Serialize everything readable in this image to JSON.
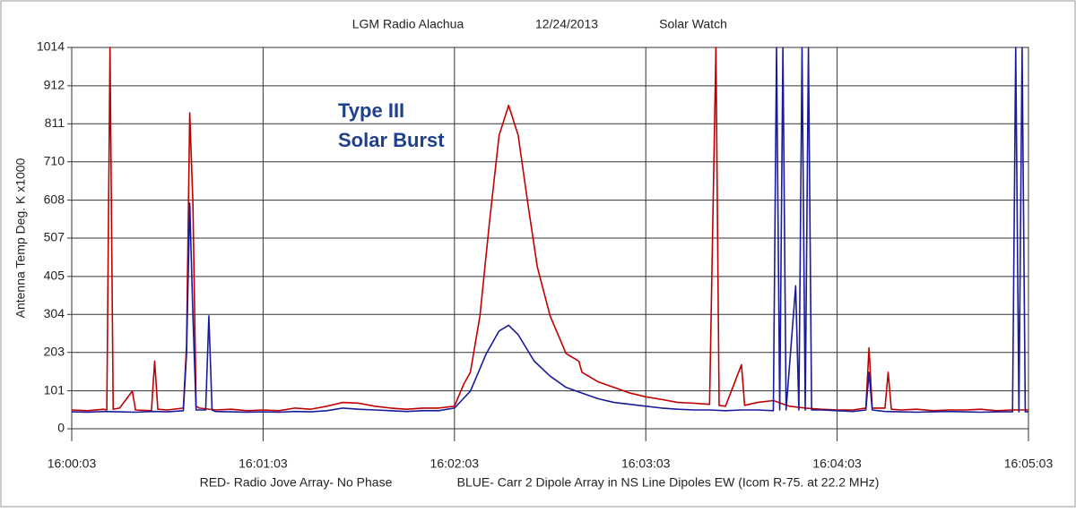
{
  "chart_data": {
    "type": "line",
    "title_parts": [
      "LGM Radio Alachua",
      "12/24/2013",
      "Solar Watch"
    ],
    "y_label": "Antenna Temp Deg. K x1000",
    "annotation": [
      "Type III",
      "Solar Burst"
    ],
    "ylim": [
      0,
      1014
    ],
    "yticks": [
      0,
      101,
      203,
      304,
      405,
      507,
      608,
      710,
      811,
      912,
      1014
    ],
    "xlim": [
      "16:00:03",
      "16:05:03"
    ],
    "xticks": [
      "16:00:03",
      "16:01:03",
      "16:02:03",
      "16:03:03",
      "16:04:03",
      "16:05:03"
    ],
    "grid": true,
    "series": [
      {
        "name": "RED- Radio Jove Array- No Phase",
        "color": "#c00000",
        "x": [
          "16:00:03",
          "16:00:08",
          "16:00:13",
          "16:00:14",
          "16:00:15",
          "16:00:16",
          "16:00:18",
          "16:00:22",
          "16:00:23",
          "16:00:28",
          "16:00:29",
          "16:00:30",
          "16:00:33",
          "16:00:38",
          "16:00:39",
          "16:00:40",
          "16:00:41",
          "16:00:42",
          "16:00:43",
          "16:00:48",
          "16:00:53",
          "16:00:58",
          "16:01:03",
          "16:01:08",
          "16:01:13",
          "16:01:18",
          "16:01:23",
          "16:01:28",
          "16:01:33",
          "16:01:38",
          "16:01:43",
          "16:01:48",
          "16:01:53",
          "16:01:58",
          "16:02:03",
          "16:02:06",
          "16:02:08",
          "16:02:11",
          "16:02:14",
          "16:02:17",
          "16:02:20",
          "16:02:23",
          "16:02:26",
          "16:02:29",
          "16:02:33",
          "16:02:38",
          "16:02:42",
          "16:02:43",
          "16:02:48",
          "16:02:53",
          "16:02:58",
          "16:03:03",
          "16:03:08",
          "16:03:13",
          "16:03:18",
          "16:03:23",
          "16:03:25",
          "16:03:26",
          "16:03:28",
          "16:03:33",
          "16:03:34",
          "16:03:38",
          "16:03:43",
          "16:03:48",
          "16:03:53",
          "16:03:58",
          "16:04:03",
          "16:04:08",
          "16:04:12",
          "16:04:13",
          "16:04:14",
          "16:04:18",
          "16:04:19",
          "16:04:20",
          "16:04:23",
          "16:04:28",
          "16:04:33",
          "16:04:38",
          "16:04:43",
          "16:04:48",
          "16:04:53",
          "16:04:58",
          "16:05:03"
        ],
        "values": [
          50,
          48,
          52,
          50,
          1014,
          52,
          55,
          100,
          50,
          48,
          180,
          52,
          50,
          55,
          220,
          840,
          600,
          60,
          55,
          50,
          52,
          48,
          50,
          48,
          55,
          52,
          60,
          70,
          68,
          60,
          55,
          52,
          55,
          55,
          60,
          120,
          150,
          300,
          550,
          780,
          860,
          780,
          600,
          430,
          300,
          200,
          180,
          150,
          125,
          110,
          95,
          85,
          78,
          70,
          68,
          65,
          1014,
          62,
          60,
          170,
          62,
          70,
          75,
          60,
          55,
          52,
          50,
          50,
          55,
          215,
          55,
          55,
          150,
          52,
          50,
          52,
          48,
          50,
          50,
          52,
          48,
          50,
          50
        ]
      },
      {
        "name": "BLUE- Carr 2 Dipole Array in NS Line Dipoles EW (Icom R-75. at 22.2 MHz)",
        "color": "#1a1a9c",
        "x": [
          "16:00:03",
          "16:00:08",
          "16:00:13",
          "16:00:18",
          "16:00:23",
          "16:00:28",
          "16:00:33",
          "16:00:38",
          "16:00:39",
          "16:00:40",
          "16:00:41",
          "16:00:42",
          "16:00:45",
          "16:00:46",
          "16:00:47",
          "16:00:48",
          "16:00:53",
          "16:00:58",
          "16:01:03",
          "16:01:08",
          "16:01:13",
          "16:01:18",
          "16:01:23",
          "16:01:28",
          "16:01:33",
          "16:01:38",
          "16:01:43",
          "16:01:48",
          "16:01:53",
          "16:01:58",
          "16:02:03",
          "16:02:08",
          "16:02:11",
          "16:02:13",
          "16:02:17",
          "16:02:20",
          "16:02:23",
          "16:02:28",
          "16:02:33",
          "16:02:38",
          "16:02:43",
          "16:02:48",
          "16:02:53",
          "16:02:58",
          "16:03:03",
          "16:03:08",
          "16:03:13",
          "16:03:18",
          "16:03:23",
          "16:03:28",
          "16:03:33",
          "16:03:38",
          "16:03:43",
          "16:03:44",
          "16:03:45",
          "16:03:46",
          "16:03:47",
          "16:03:50",
          "16:03:51",
          "16:03:52",
          "16:03:53",
          "16:03:54",
          "16:03:55",
          "16:03:58",
          "16:04:03",
          "16:04:08",
          "16:04:12",
          "16:04:13",
          "16:04:14",
          "16:04:18",
          "16:04:23",
          "16:04:28",
          "16:04:33",
          "16:04:38",
          "16:04:43",
          "16:04:48",
          "16:04:53",
          "16:04:58",
          "16:04:59",
          "16:05:00",
          "16:05:01",
          "16:05:02",
          "16:05:03"
        ],
        "values": [
          45,
          44,
          46,
          45,
          44,
          46,
          45,
          48,
          200,
          600,
          300,
          50,
          50,
          300,
          50,
          46,
          45,
          44,
          45,
          44,
          46,
          45,
          48,
          55,
          52,
          50,
          48,
          46,
          48,
          48,
          55,
          100,
          160,
          200,
          260,
          275,
          250,
          180,
          140,
          110,
          95,
          80,
          70,
          65,
          60,
          55,
          52,
          50,
          50,
          48,
          50,
          50,
          48,
          1014,
          50,
          1014,
          50,
          380,
          50,
          1014,
          50,
          1014,
          50,
          50,
          48,
          46,
          50,
          150,
          50,
          46,
          45,
          44,
          45,
          46,
          45,
          44,
          45,
          45,
          1014,
          45,
          1014,
          45,
          45
        ]
      }
    ]
  }
}
